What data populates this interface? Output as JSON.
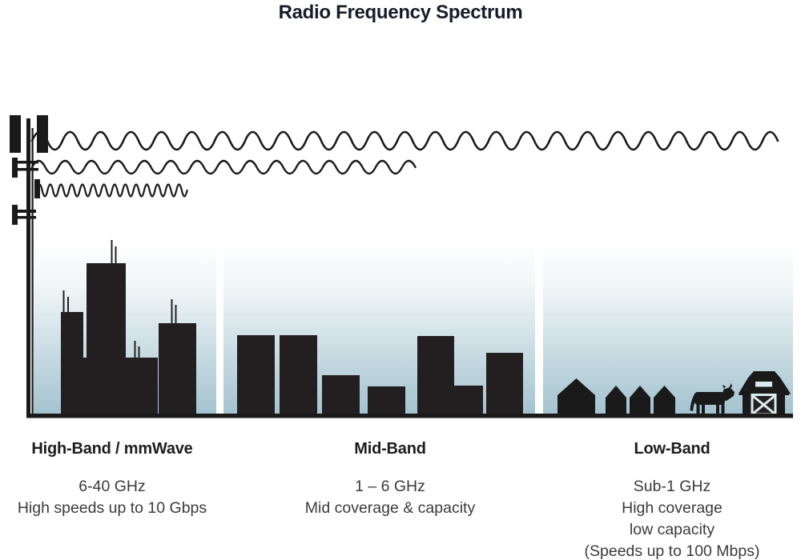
{
  "title": "Radio Frequency Spectrum",
  "bands": [
    {
      "name": "High-Band / mmWave",
      "freq": "6-40 GHz",
      "desc1": "High speeds up to 10 Gbps",
      "desc2": "",
      "desc3": ""
    },
    {
      "name": "Mid-Band",
      "freq": "1 – 6 GHz",
      "desc1": "Mid coverage & capacity",
      "desc2": "",
      "desc3": ""
    },
    {
      "name": "Low-Band",
      "freq": "Sub-1 GHz",
      "desc1": "High coverage",
      "desc2": "low capacity",
      "desc3": "(Speeds up to 100 Mbps)"
    }
  ],
  "icons": [
    "cell-tower-icon",
    "low-band-wave-icon",
    "mid-band-wave-icon",
    "high-band-wave-icon",
    "city-skyline-icon",
    "town-skyline-icon",
    "house-icon",
    "cow-icon",
    "barn-icon"
  ],
  "colors": {
    "silhouette": "#231f20",
    "line_art": "#1a1a1a",
    "sky_gradient_top": "#ffffff",
    "sky_gradient_bottom": "#a4c3cf",
    "title_text": "#161d29",
    "heading_text": "#1d1d1d",
    "body_text": "#3b3b3b"
  }
}
